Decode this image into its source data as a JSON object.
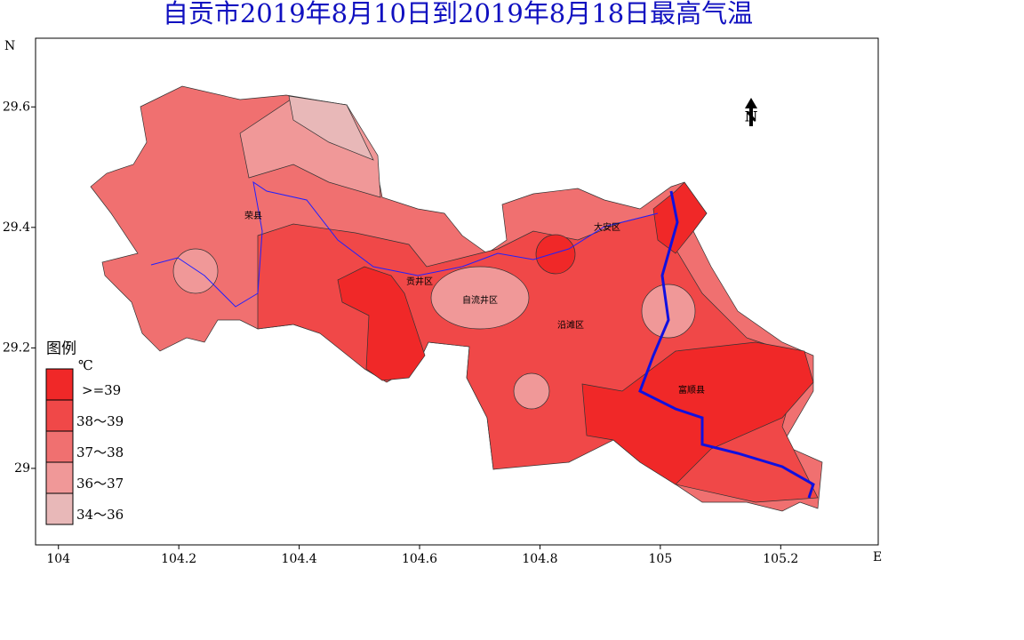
{
  "title": "自贡市2019年8月10日到2019年8月18日最高气温",
  "map": {
    "x_label": "E",
    "y_label": "N",
    "xlim": [
      103.962,
      105.362
    ],
    "ylim": [
      28.873,
      29.714
    ],
    "xticks": [
      104,
      104.2,
      104.4,
      104.6,
      104.8,
      105,
      105.2
    ],
    "yticks": [
      29,
      29.2,
      29.4,
      29.6
    ]
  },
  "north_arrow": "N",
  "places": [
    "荣县",
    "贡井区",
    "自流井区",
    "大安区",
    "沿滩区",
    "富顺县"
  ],
  "legend": {
    "title": "图例",
    "unit": "℃",
    "items": [
      {
        "label": ">=39",
        "color": "#f02828"
      },
      {
        "label": "38～39",
        "color": "#f04848"
      },
      {
        "label": "37～38",
        "color": "#f07070"
      },
      {
        "label": "36～37",
        "color": "#f09898"
      },
      {
        "label": "34～36",
        "color": "#e8b8b8"
      }
    ]
  }
}
